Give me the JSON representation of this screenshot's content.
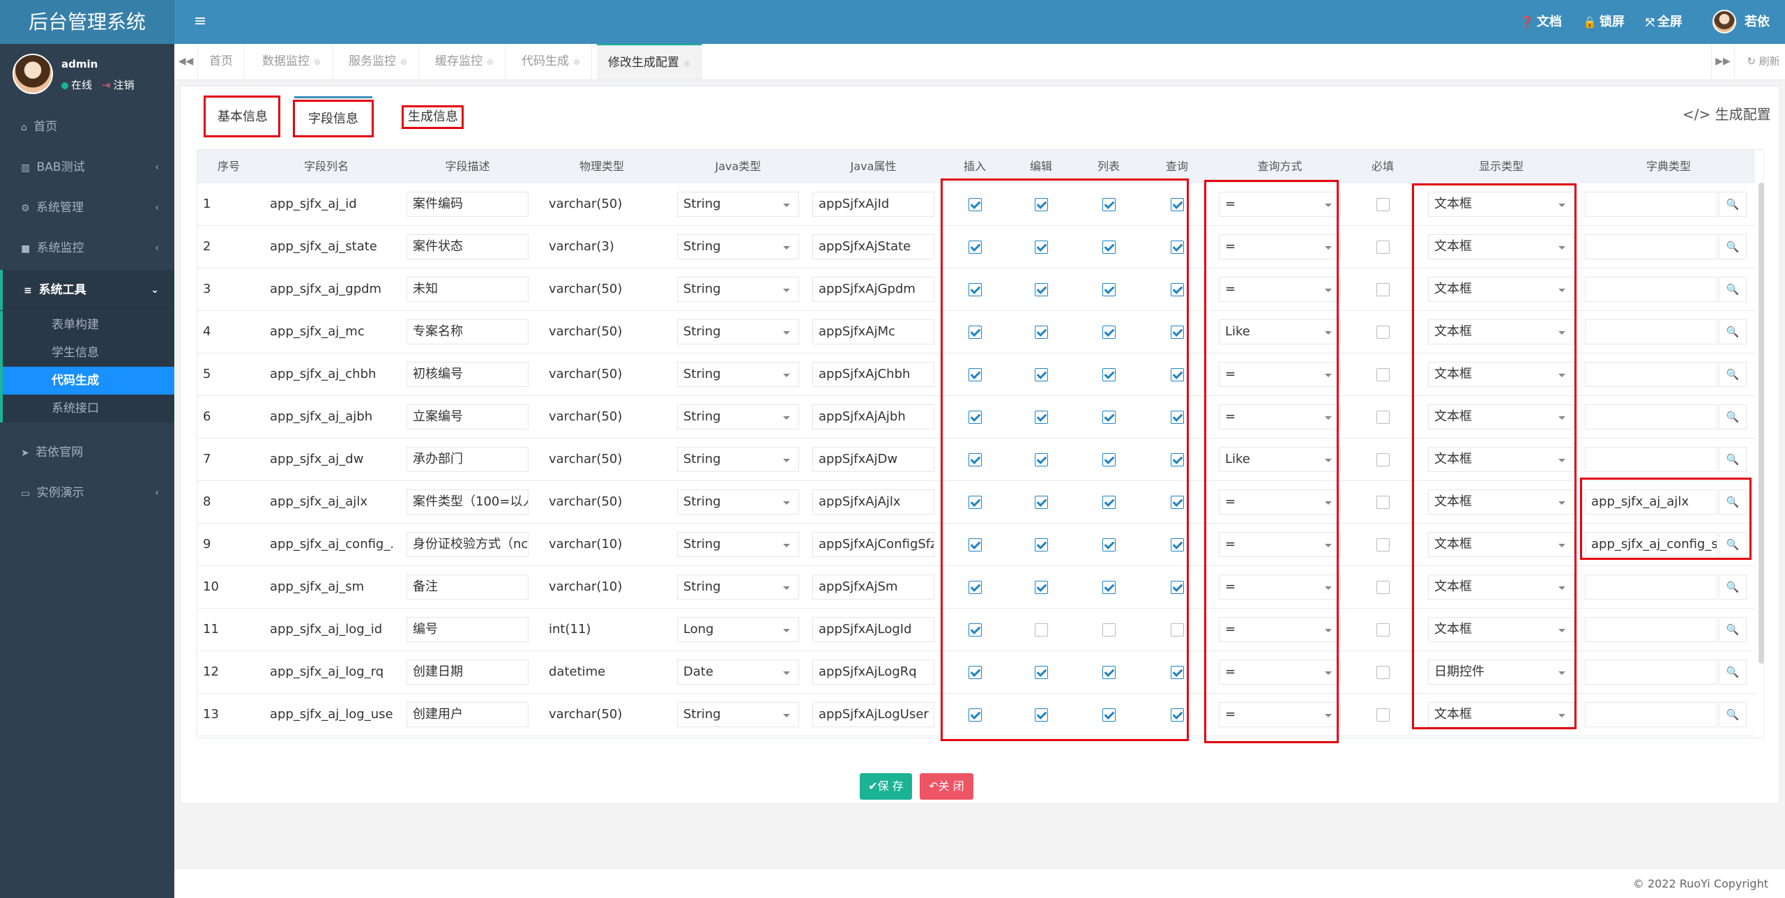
{
  "header": {
    "brand": "后台管理系统",
    "links": [
      {
        "icon": "question-icon",
        "glyph": "?",
        "label": "文档"
      },
      {
        "icon": "lock-icon",
        "glyph": "🔒",
        "label": "锁屏"
      },
      {
        "icon": "fullscreen-icon",
        "glyph": "⤧",
        "label": "全屏"
      }
    ],
    "username": "若依"
  },
  "sidebar": {
    "user": {
      "name": "admin",
      "online": "在线",
      "logout": "注销"
    },
    "menu": [
      {
        "label": "首页",
        "glyph": "⌂",
        "arrow": ""
      },
      {
        "label": "BAB测试",
        "glyph": "▥",
        "arrow": "‹"
      },
      {
        "label": "系统管理",
        "glyph": "⚙",
        "arrow": "‹"
      },
      {
        "label": "系统监控",
        "glyph": "■",
        "arrow": "‹"
      },
      {
        "label": "系统工具",
        "glyph": "≡",
        "arrow": "⌄"
      }
    ],
    "submenu": [
      "表单构建",
      "学生信息",
      "代码生成",
      "系统接口"
    ],
    "menu2": [
      {
        "label": "若依官网",
        "glyph": "➤",
        "arrow": ""
      },
      {
        "label": "实例演示",
        "glyph": "▭",
        "arrow": "‹"
      }
    ]
  },
  "tabs": [
    "首页",
    "数据监控",
    "服务监控",
    "缓存监控",
    "代码生成",
    "修改生成配置"
  ],
  "refresh_label": "刷新",
  "panel_tabs": [
    "基本信息",
    "字段信息",
    "生成信息"
  ],
  "gen_config_label": "</> 生成配置",
  "table": {
    "headers": [
      "序号",
      "字段列名",
      "字段描述",
      "物理类型",
      "Java类型",
      "Java属性",
      "插入",
      "编辑",
      "列表",
      "查询",
      "查询方式",
      "必填",
      "显示类型",
      "字典类型"
    ],
    "rows": [
      {
        "no": "1",
        "col": "app_sjfx_aj_id",
        "desc": "案件编码",
        "phys": "varchar(50)",
        "jtype": "String",
        "jattr": "appSjfxAjId",
        "ins": true,
        "edit": true,
        "list": true,
        "query": true,
        "qmode": "=",
        "req": false,
        "disp": "文本框",
        "dict": ""
      },
      {
        "no": "2",
        "col": "app_sjfx_aj_state",
        "desc": "案件状态",
        "phys": "varchar(3)",
        "jtype": "String",
        "jattr": "appSjfxAjState",
        "ins": true,
        "edit": true,
        "list": true,
        "query": true,
        "qmode": "=",
        "req": false,
        "disp": "文本框",
        "dict": ""
      },
      {
        "no": "3",
        "col": "app_sjfx_aj_gpdm",
        "desc": "未知",
        "phys": "varchar(50)",
        "jtype": "String",
        "jattr": "appSjfxAjGpdm",
        "ins": true,
        "edit": true,
        "list": true,
        "query": true,
        "qmode": "=",
        "req": false,
        "disp": "文本框",
        "dict": ""
      },
      {
        "no": "4",
        "col": "app_sjfx_aj_mc",
        "desc": "专案名称",
        "phys": "varchar(50)",
        "jtype": "String",
        "jattr": "appSjfxAjMc",
        "ins": true,
        "edit": true,
        "list": true,
        "query": true,
        "qmode": "Like",
        "req": false,
        "disp": "文本框",
        "dict": ""
      },
      {
        "no": "5",
        "col": "app_sjfx_aj_chbh",
        "desc": "初核编号",
        "phys": "varchar(50)",
        "jtype": "String",
        "jattr": "appSjfxAjChbh",
        "ins": true,
        "edit": true,
        "list": true,
        "query": true,
        "qmode": "=",
        "req": false,
        "disp": "文本框",
        "dict": ""
      },
      {
        "no": "6",
        "col": "app_sjfx_aj_ajbh",
        "desc": "立案编号",
        "phys": "varchar(50)",
        "jtype": "String",
        "jattr": "appSjfxAjAjbh",
        "ins": true,
        "edit": true,
        "list": true,
        "query": true,
        "qmode": "=",
        "req": false,
        "disp": "文本框",
        "dict": ""
      },
      {
        "no": "7",
        "col": "app_sjfx_aj_dw",
        "desc": "承办部门",
        "phys": "varchar(50)",
        "jtype": "String",
        "jattr": "appSjfxAjDw",
        "ins": true,
        "edit": true,
        "list": true,
        "query": true,
        "qmode": "Like",
        "req": false,
        "disp": "文本框",
        "dict": ""
      },
      {
        "no": "8",
        "col": "app_sjfx_aj_ajlx",
        "desc": "案件类型（100=以人",
        "phys": "varchar(50)",
        "jtype": "String",
        "jattr": "appSjfxAjAjlx",
        "ins": true,
        "edit": true,
        "list": true,
        "query": true,
        "qmode": "=",
        "req": false,
        "disp": "文本框",
        "dict": "app_sjfx_aj_ajlx"
      },
      {
        "no": "9",
        "col": "app_sjfx_aj_config_...",
        "desc": "身份证校验方式（nc",
        "phys": "varchar(10)",
        "jtype": "String",
        "jattr": "appSjfxAjConfigSfz",
        "ins": true,
        "edit": true,
        "list": true,
        "query": true,
        "qmode": "=",
        "req": false,
        "disp": "文本框",
        "dict": "app_sjfx_aj_config_sfz"
      },
      {
        "no": "10",
        "col": "app_sjfx_aj_sm",
        "desc": "备注",
        "phys": "varchar(10)",
        "jtype": "String",
        "jattr": "appSjfxAjSm",
        "ins": true,
        "edit": true,
        "list": true,
        "query": true,
        "qmode": "=",
        "req": false,
        "disp": "文本框",
        "dict": ""
      },
      {
        "no": "11",
        "col": "app_sjfx_aj_log_id",
        "desc": "编号",
        "phys": "int(11)",
        "jtype": "Long",
        "jattr": "appSjfxAjLogId",
        "ins": true,
        "edit": false,
        "list": false,
        "query": false,
        "qmode": "=",
        "req": false,
        "disp": "文本框",
        "dict": ""
      },
      {
        "no": "12",
        "col": "app_sjfx_aj_log_rq",
        "desc": "创建日期",
        "phys": "datetime",
        "jtype": "Date",
        "jattr": "appSjfxAjLogRq",
        "ins": true,
        "edit": true,
        "list": true,
        "query": true,
        "qmode": "=",
        "req": false,
        "disp": "日期控件",
        "dict": ""
      },
      {
        "no": "13",
        "col": "app_sjfx_aj_log_user",
        "desc": "创建用户",
        "phys": "varchar(50)",
        "jtype": "String",
        "jattr": "appSjfxAjLogUser",
        "ins": true,
        "edit": true,
        "list": true,
        "query": true,
        "qmode": "=",
        "req": false,
        "disp": "文本框",
        "dict": ""
      }
    ]
  },
  "buttons": {
    "save": "✔保 存",
    "close": "↶关 闭"
  },
  "footer": "© 2022 RuoYi Copyright",
  "colors": {
    "topbar": "#3c8dbc",
    "sidebar": "#2f4050",
    "accent": "#1890ff",
    "save": "#1ab394",
    "close": "#ed5565",
    "highlight": "#e4000f"
  }
}
